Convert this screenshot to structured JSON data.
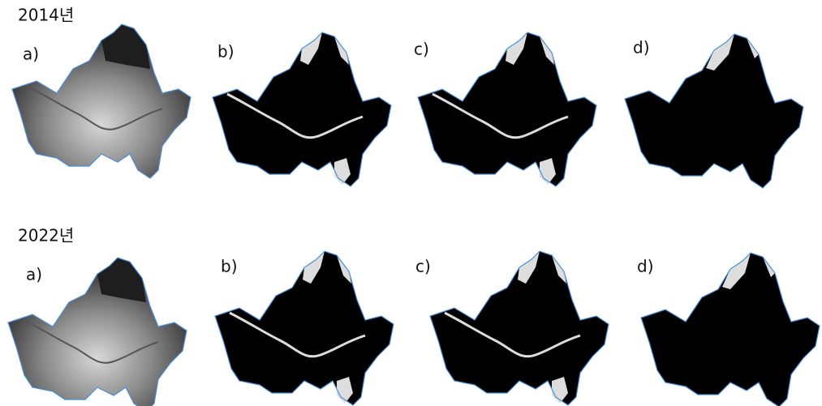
{
  "rows": [
    {
      "year": "2014년",
      "panels": [
        "a)",
        "b)",
        "c)",
        "d)"
      ]
    },
    {
      "year": "2022년",
      "panels": [
        "a)",
        "b)",
        "c)",
        "d)"
      ]
    }
  ]
}
